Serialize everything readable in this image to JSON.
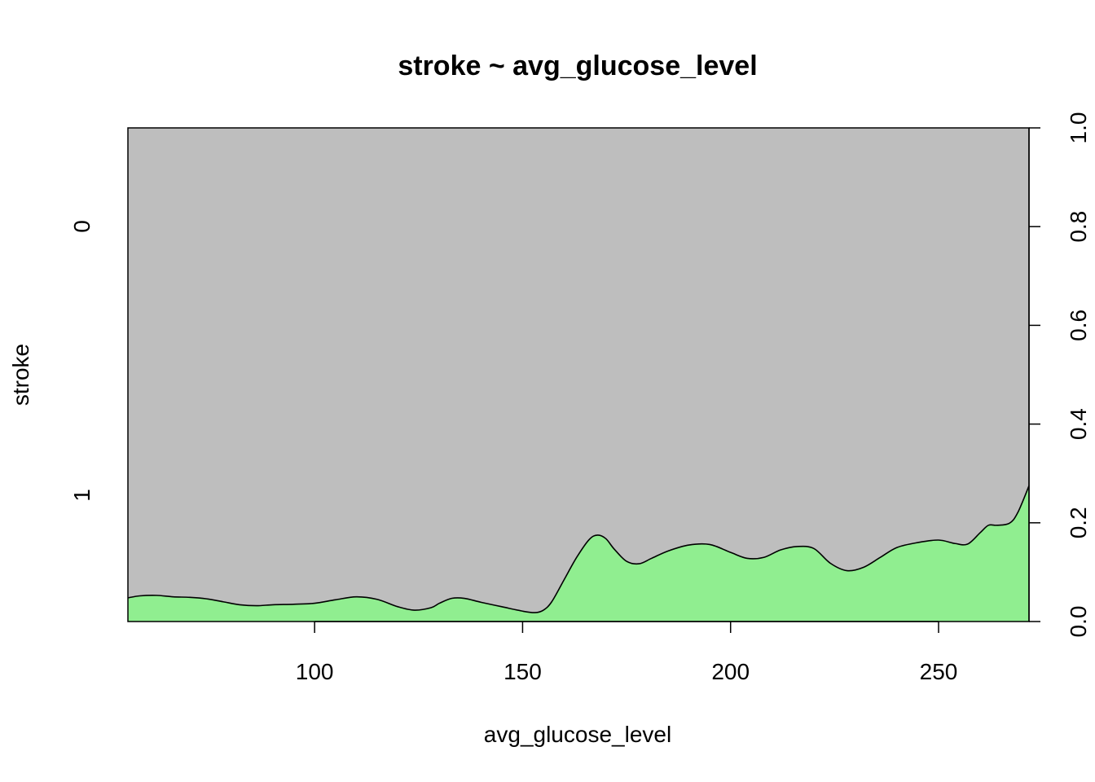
{
  "chart_data": {
    "type": "area",
    "title": "stroke ~ avg_glucose_level",
    "xlabel": "avg_glucose_level",
    "ylabel": "stroke",
    "xlim": [
      55.12,
      271.74
    ],
    "x_ticks": [
      100,
      150,
      200,
      250
    ],
    "y_left_categories": [
      "0",
      "1"
    ],
    "y_right_ticks": [
      "0.0",
      "0.2",
      "0.4",
      "0.6",
      "0.8",
      "1.0"
    ],
    "ylim": [
      0,
      1
    ],
    "grid": false,
    "colors": {
      "stroke_1": "#90ee90",
      "stroke_0": "#bebebe",
      "outline": "#000000"
    },
    "series": [
      {
        "name": "1",
        "x": [
          55.12,
          58,
          62,
          66,
          70,
          74,
          78,
          82,
          86,
          90,
          95,
          100,
          105,
          110,
          115,
          120,
          124,
          128,
          130,
          133,
          136,
          140,
          145,
          150,
          153,
          155,
          157,
          160,
          163,
          166,
          168,
          170,
          172,
          175,
          178,
          181,
          185,
          190,
          195,
          200,
          204,
          208,
          212,
          216,
          220,
          224,
          228,
          232,
          236,
          240,
          245,
          250,
          254,
          257,
          260,
          262,
          264,
          267,
          269,
          271.74
        ],
        "values": [
          0.048,
          0.052,
          0.053,
          0.05,
          0.049,
          0.046,
          0.04,
          0.034,
          0.032,
          0.034,
          0.035,
          0.037,
          0.044,
          0.05,
          0.045,
          0.03,
          0.023,
          0.028,
          0.037,
          0.047,
          0.047,
          0.039,
          0.03,
          0.021,
          0.018,
          0.023,
          0.04,
          0.085,
          0.13,
          0.166,
          0.175,
          0.168,
          0.147,
          0.122,
          0.117,
          0.128,
          0.143,
          0.155,
          0.156,
          0.14,
          0.128,
          0.13,
          0.145,
          0.152,
          0.148,
          0.118,
          0.103,
          0.11,
          0.13,
          0.15,
          0.16,
          0.165,
          0.158,
          0.157,
          0.18,
          0.195,
          0.195,
          0.199,
          0.22,
          0.275
        ]
      }
    ]
  }
}
